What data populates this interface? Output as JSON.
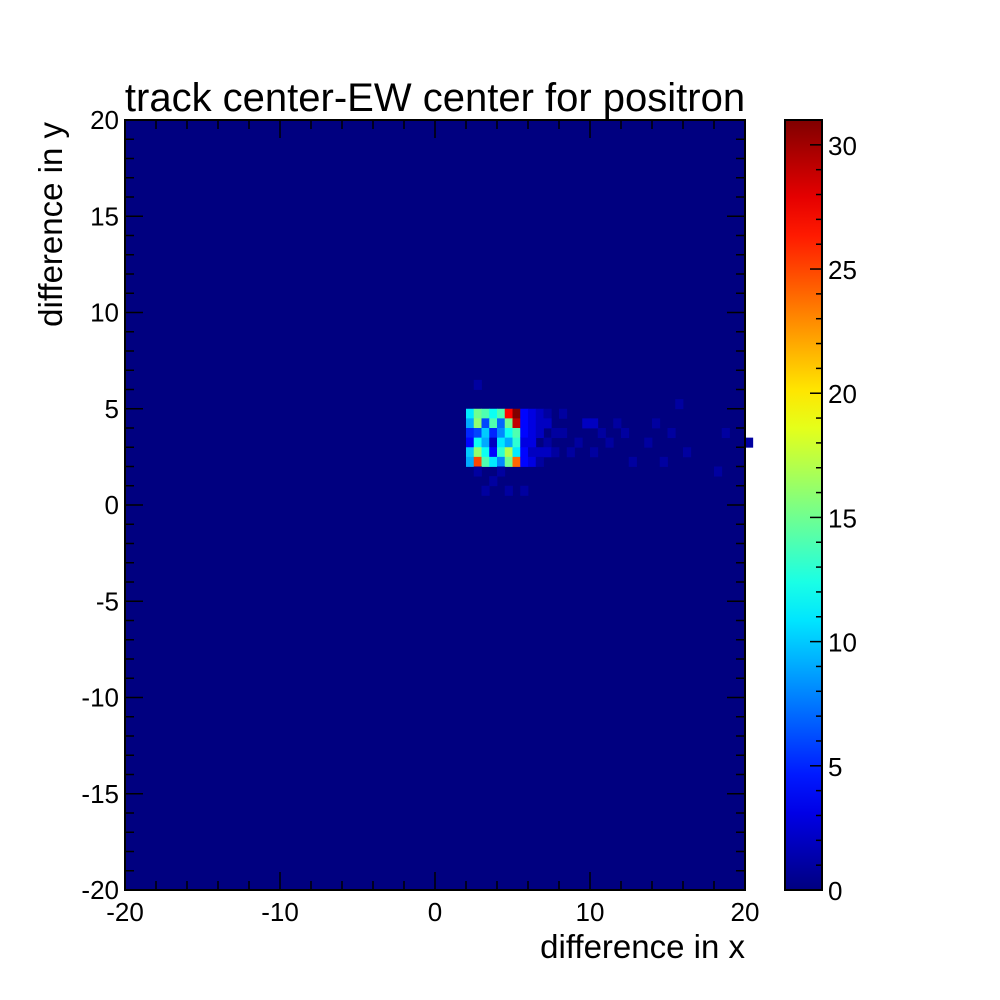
{
  "chart_data": {
    "type": "heatmap",
    "title": "track center-EW center for positron",
    "xlabel": "difference in x",
    "ylabel": "difference in y",
    "xlim": [
      -20,
      20
    ],
    "ylim": [
      -20,
      20
    ],
    "zlim": [
      0,
      31
    ],
    "bin_width": 0.5,
    "background_value": 0,
    "x_ticks": [
      "-20",
      "-10",
      "0",
      "10",
      "20"
    ],
    "y_ticks": [
      "20",
      "15",
      "10",
      "5",
      "0",
      "-5",
      "-10",
      "-15",
      "-20"
    ],
    "colorbar_ticks": [
      "30",
      "25",
      "20",
      "15",
      "10",
      "5",
      "0"
    ],
    "colorscale": "jet",
    "cells": [
      {
        "x": 2.0,
        "y": 4.5,
        "v": 11
      },
      {
        "x": 2.5,
        "y": 4.5,
        "v": 15
      },
      {
        "x": 3.0,
        "y": 4.5,
        "v": 14
      },
      {
        "x": 3.5,
        "y": 4.5,
        "v": 12
      },
      {
        "x": 4.0,
        "y": 4.5,
        "v": 14
      },
      {
        "x": 4.5,
        "y": 4.5,
        "v": 27
      },
      {
        "x": 5.0,
        "y": 4.5,
        "v": 31
      },
      {
        "x": 2.0,
        "y": 4.0,
        "v": 9
      },
      {
        "x": 2.5,
        "y": 4.0,
        "v": 16
      },
      {
        "x": 3.0,
        "y": 4.0,
        "v": 6
      },
      {
        "x": 3.5,
        "y": 4.0,
        "v": 14
      },
      {
        "x": 4.0,
        "y": 4.0,
        "v": 7
      },
      {
        "x": 4.5,
        "y": 4.0,
        "v": 15
      },
      {
        "x": 5.0,
        "y": 4.0,
        "v": 29
      },
      {
        "x": 2.0,
        "y": 3.5,
        "v": 5
      },
      {
        "x": 2.5,
        "y": 3.5,
        "v": 6
      },
      {
        "x": 3.0,
        "y": 3.5,
        "v": 10
      },
      {
        "x": 3.5,
        "y": 3.5,
        "v": 5
      },
      {
        "x": 4.0,
        "y": 3.5,
        "v": 8
      },
      {
        "x": 4.5,
        "y": 3.5,
        "v": 12
      },
      {
        "x": 5.0,
        "y": 3.5,
        "v": 14
      },
      {
        "x": 2.0,
        "y": 3.0,
        "v": 4
      },
      {
        "x": 2.5,
        "y": 3.0,
        "v": 12
      },
      {
        "x": 3.0,
        "y": 3.0,
        "v": 9
      },
      {
        "x": 3.5,
        "y": 3.0,
        "v": 2
      },
      {
        "x": 4.0,
        "y": 3.0,
        "v": 11
      },
      {
        "x": 4.5,
        "y": 3.0,
        "v": 9
      },
      {
        "x": 5.0,
        "y": 3.0,
        "v": 13
      },
      {
        "x": 2.0,
        "y": 2.5,
        "v": 10
      },
      {
        "x": 2.5,
        "y": 2.5,
        "v": 16
      },
      {
        "x": 3.0,
        "y": 2.5,
        "v": 12
      },
      {
        "x": 3.5,
        "y": 2.5,
        "v": 4
      },
      {
        "x": 4.0,
        "y": 2.5,
        "v": 13
      },
      {
        "x": 4.5,
        "y": 2.5,
        "v": 17
      },
      {
        "x": 5.0,
        "y": 2.5,
        "v": 11
      },
      {
        "x": 2.0,
        "y": 2.0,
        "v": 9
      },
      {
        "x": 2.5,
        "y": 2.0,
        "v": 25
      },
      {
        "x": 3.0,
        "y": 2.0,
        "v": 14
      },
      {
        "x": 3.5,
        "y": 2.0,
        "v": 11
      },
      {
        "x": 4.0,
        "y": 2.0,
        "v": 8
      },
      {
        "x": 4.5,
        "y": 2.0,
        "v": 15
      },
      {
        "x": 5.0,
        "y": 2.0,
        "v": 24
      },
      {
        "x": 5.5,
        "y": 4.5,
        "v": 4
      },
      {
        "x": 6.0,
        "y": 4.5,
        "v": 3
      },
      {
        "x": 6.5,
        "y": 4.5,
        "v": 2
      },
      {
        "x": 7.0,
        "y": 4.5,
        "v": 1
      },
      {
        "x": 5.5,
        "y": 4.0,
        "v": 4
      },
      {
        "x": 6.0,
        "y": 4.0,
        "v": 3
      },
      {
        "x": 6.5,
        "y": 4.0,
        "v": 2
      },
      {
        "x": 7.0,
        "y": 4.0,
        "v": 2
      },
      {
        "x": 5.5,
        "y": 3.5,
        "v": 4
      },
      {
        "x": 6.0,
        "y": 3.5,
        "v": 3
      },
      {
        "x": 6.5,
        "y": 3.5,
        "v": 2
      },
      {
        "x": 7.5,
        "y": 3.5,
        "v": 1
      },
      {
        "x": 5.5,
        "y": 3.0,
        "v": 3
      },
      {
        "x": 6.0,
        "y": 3.0,
        "v": 3
      },
      {
        "x": 7.0,
        "y": 3.0,
        "v": 1
      },
      {
        "x": 5.5,
        "y": 2.5,
        "v": 4
      },
      {
        "x": 6.0,
        "y": 2.5,
        "v": 2
      },
      {
        "x": 6.5,
        "y": 2.5,
        "v": 2
      },
      {
        "x": 5.5,
        "y": 2.0,
        "v": 4
      },
      {
        "x": 6.0,
        "y": 2.0,
        "v": 3
      },
      {
        "x": 6.5,
        "y": 2.0,
        "v": 1
      },
      {
        "x": 7.0,
        "y": 2.5,
        "v": 2
      },
      {
        "x": 7.5,
        "y": 2.5,
        "v": 1
      },
      {
        "x": 8.0,
        "y": 3.5,
        "v": 1
      },
      {
        "x": 8.5,
        "y": 2.5,
        "v": 1
      },
      {
        "x": 9.0,
        "y": 3.0,
        "v": 1
      },
      {
        "x": 8.0,
        "y": 4.5,
        "v": 1
      },
      {
        "x": 9.5,
        "y": 4.0,
        "v": 2
      },
      {
        "x": 10.0,
        "y": 4.0,
        "v": 2
      },
      {
        "x": 10.5,
        "y": 3.5,
        "v": 1
      },
      {
        "x": 10.0,
        "y": 2.5,
        "v": 1
      },
      {
        "x": 11.0,
        "y": 3.0,
        "v": 1
      },
      {
        "x": 11.5,
        "y": 4.0,
        "v": 1
      },
      {
        "x": 12.0,
        "y": 3.5,
        "v": 1
      },
      {
        "x": 12.5,
        "y": 2.0,
        "v": 1
      },
      {
        "x": 13.5,
        "y": 3.0,
        "v": 1
      },
      {
        "x": 14.0,
        "y": 4.0,
        "v": 1
      },
      {
        "x": 14.5,
        "y": 2.0,
        "v": 1
      },
      {
        "x": 15.0,
        "y": 3.5,
        "v": 1
      },
      {
        "x": 15.5,
        "y": 5.0,
        "v": 1
      },
      {
        "x": 16.0,
        "y": 2.5,
        "v": 1
      },
      {
        "x": 18.0,
        "y": 1.5,
        "v": 1
      },
      {
        "x": 18.5,
        "y": 3.5,
        "v": 1
      },
      {
        "x": 20.0,
        "y": 3.0,
        "v": 1
      },
      {
        "x": 2.5,
        "y": 6.0,
        "v": 1
      },
      {
        "x": 2.5,
        "y": 1.5,
        "v": 1
      },
      {
        "x": 3.0,
        "y": 0.5,
        "v": 1
      },
      {
        "x": 3.5,
        "y": 1.0,
        "v": 1
      },
      {
        "x": 4.5,
        "y": 0.5,
        "v": 1
      },
      {
        "x": 5.5,
        "y": 0.5,
        "v": 1
      },
      {
        "x": 4.0,
        "y": 1.5,
        "v": 1
      }
    ]
  }
}
